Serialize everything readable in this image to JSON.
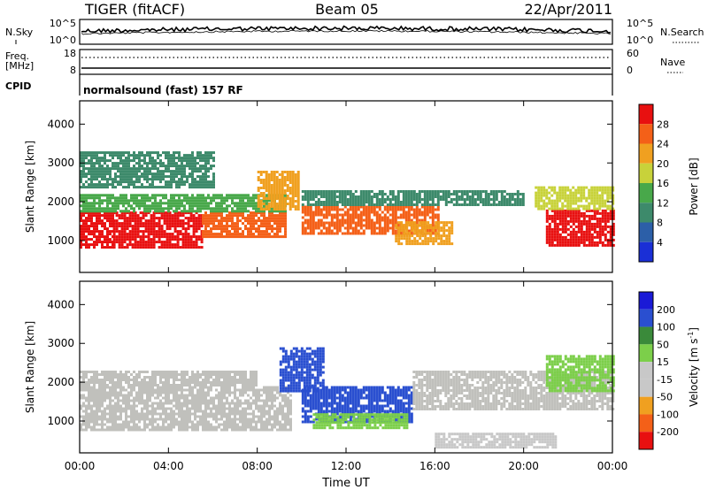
{
  "header": {
    "title_left": "TIGER (fitACF)",
    "title_center": "Beam 05",
    "title_right": "22/Apr/2011"
  },
  "noise_panel": {
    "label_left": "N.Sky",
    "label_right": "N.Search",
    "left_ticks": [
      "10^5",
      "10^0"
    ],
    "right_ticks": [
      "10^5",
      "10^0"
    ]
  },
  "freq_panel": {
    "label_left_1": "Freq.",
    "label_left_2": "[MHz]",
    "label_right": "Nave",
    "left_ticks": [
      "18",
      "8"
    ],
    "right_ticks": [
      "60",
      "0"
    ]
  },
  "cpid_panel": {
    "label": "CPID",
    "text": "normalsound (fast) 157 RF"
  },
  "power_panel": {
    "ylabel": "Slant Range [km]",
    "yticks": [
      "4000",
      "3000",
      "2000",
      "1000"
    ],
    "colorbar_label": "Power [dB]",
    "colorbar_ticks": [
      "28",
      "24",
      "20",
      "16",
      "12",
      "8",
      "4"
    ]
  },
  "velocity_panel": {
    "ylabel": "Slant Range [km]",
    "yticks": [
      "4000",
      "3000",
      "2000",
      "1000"
    ],
    "colorbar_label": "Velocity [m s",
    "colorbar_unit_sup": "-1",
    "colorbar_unit_end": "]",
    "colorbar_ticks": [
      "200",
      "100",
      "50",
      "15",
      "-15",
      "-50",
      "-100",
      "-200"
    ]
  },
  "x_axis": {
    "label": "Time UT",
    "ticks": [
      "00:00",
      "04:00",
      "08:00",
      "12:00",
      "16:00",
      "20:00",
      "00:00"
    ]
  },
  "colors": {
    "power_scale": [
      "#1a2fd6",
      "#2c5fa8",
      "#3d8a6b",
      "#48a84a",
      "#c8d23a",
      "#f0a020",
      "#f46018",
      "#e81010"
    ],
    "velocity_scale": [
      "#e81010",
      "#f46018",
      "#f0a020",
      "#c8c8c8",
      "#c8c8c8",
      "#7ccf4a",
      "#3a8a3a",
      "#2a4fd0",
      "#1a1ad6"
    ],
    "ground_scatter": "#c0c0bc"
  },
  "chart_data": [
    {
      "type": "heatmap",
      "name": "power",
      "x_range_hours": [
        0,
        24
      ],
      "y_range_km": [
        180,
        4600
      ],
      "scale_range_db": [
        0,
        30
      ],
      "bands": [
        {
          "t": [
            0.0,
            1.5
          ],
          "km": [
            800,
            1750
          ],
          "value": 28
        },
        {
          "t": [
            1.5,
            5.5
          ],
          "km": [
            800,
            1750
          ],
          "value": 27
        },
        {
          "t": [
            5.5,
            9.3
          ],
          "km": [
            1100,
            1750
          ],
          "value": 24
        },
        {
          "t": [
            0.0,
            9.3
          ],
          "km": [
            1750,
            2200
          ],
          "value": 14
        },
        {
          "t": [
            0.0,
            6.0
          ],
          "km": [
            2400,
            3300
          ],
          "value": 8
        },
        {
          "t": [
            8.0,
            9.8
          ],
          "km": [
            1800,
            2800
          ],
          "value": 22
        },
        {
          "t": [
            10.0,
            16.2
          ],
          "km": [
            1200,
            1900
          ],
          "value": 25
        },
        {
          "t": [
            14.2,
            16.8
          ],
          "km": [
            900,
            1500
          ],
          "value": 20
        },
        {
          "t": [
            10.0,
            20.0
          ],
          "km": [
            1900,
            2300
          ],
          "value": 10
        },
        {
          "t": [
            21.0,
            24.0
          ],
          "km": [
            900,
            1800
          ],
          "value": 27
        },
        {
          "t": [
            20.5,
            24.0
          ],
          "km": [
            1800,
            2400
          ],
          "value": 16
        }
      ]
    },
    {
      "type": "heatmap",
      "name": "velocity",
      "x_range_hours": [
        0,
        24
      ],
      "y_range_km": [
        180,
        4600
      ],
      "scale_range_ms": [
        -250,
        250
      ],
      "bands": [
        {
          "t": [
            0.0,
            9.5
          ],
          "km": [
            750,
            1900
          ],
          "value": 0,
          "ground_scatter": true
        },
        {
          "t": [
            0.0,
            8.0
          ],
          "km": [
            1900,
            2300
          ],
          "value": 0,
          "ground_scatter": true
        },
        {
          "t": [
            10.0,
            15.0
          ],
          "km": [
            1000,
            1900
          ],
          "value": 150
        },
        {
          "t": [
            10.5,
            14.8
          ],
          "km": [
            800,
            1200
          ],
          "value": 60
        },
        {
          "t": [
            9.0,
            11.0
          ],
          "km": [
            1800,
            2900
          ],
          "value": 180
        },
        {
          "t": [
            15.0,
            24.0
          ],
          "km": [
            1300,
            2300
          ],
          "value": 0,
          "ground_scatter": true
        },
        {
          "t": [
            16.0,
            21.5
          ],
          "km": [
            300,
            700
          ],
          "value": -60
        },
        {
          "t": [
            21.0,
            24.0
          ],
          "km": [
            1800,
            2700
          ],
          "value": 40
        }
      ]
    }
  ]
}
